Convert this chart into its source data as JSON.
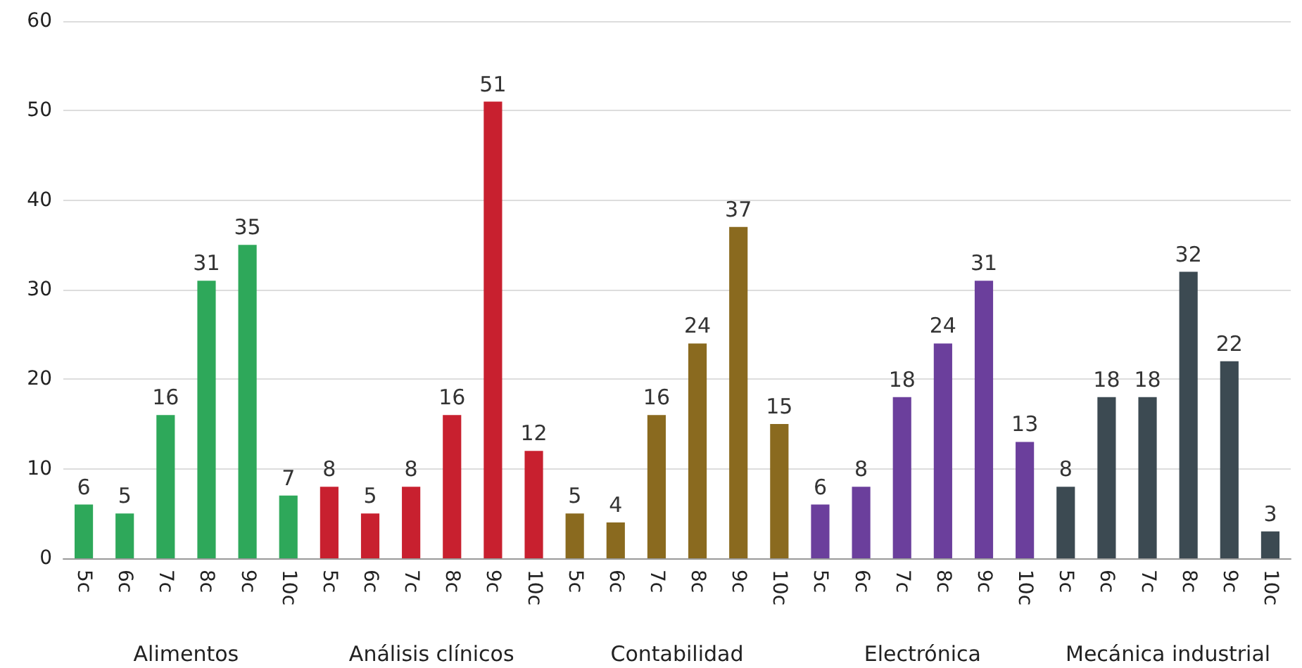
{
  "chart_data": {
    "type": "bar",
    "categories": [
      "5c",
      "6c",
      "7c",
      "8c",
      "9c",
      "10c",
      "5c",
      "6c",
      "7c",
      "8c",
      "9c",
      "10c",
      "5c",
      "6c",
      "7c",
      "8c",
      "9c",
      "10c",
      "5c",
      "6c",
      "7c",
      "8c",
      "9c",
      "10c",
      "5c",
      "6c",
      "7c",
      "8c",
      "9c",
      "10c"
    ],
    "series": [
      {
        "color": "#2ea85a",
        "values": [
          6,
          5,
          16,
          31,
          35,
          7,
          null,
          null,
          null,
          null,
          null,
          null,
          null,
          null,
          null,
          null,
          null,
          null,
          null,
          null,
          null,
          null,
          null,
          null,
          null,
          null,
          null,
          null,
          null,
          null
        ]
      },
      {
        "color": "#c8202f",
        "values": [
          null,
          null,
          null,
          null,
          null,
          null,
          8,
          5,
          8,
          16,
          51,
          12,
          null,
          null,
          null,
          null,
          null,
          null,
          null,
          null,
          null,
          null,
          null,
          null,
          null,
          null,
          null,
          null,
          null,
          null
        ]
      },
      {
        "color": "#8a6a1f",
        "values": [
          null,
          null,
          null,
          null,
          null,
          null,
          null,
          null,
          null,
          null,
          null,
          null,
          5,
          4,
          16,
          24,
          37,
          15,
          null,
          null,
          null,
          null,
          null,
          null,
          null,
          null,
          null,
          null,
          null,
          null
        ]
      },
      {
        "color": "#6b3f9c",
        "values": [
          null,
          null,
          null,
          null,
          null,
          null,
          null,
          null,
          null,
          null,
          null,
          null,
          null,
          null,
          null,
          null,
          null,
          null,
          6,
          8,
          18,
          24,
          31,
          13,
          null,
          null,
          null,
          null,
          null,
          null
        ]
      },
      {
        "color": "#3c4a52",
        "values": [
          null,
          null,
          null,
          null,
          null,
          null,
          null,
          null,
          null,
          null,
          null,
          null,
          null,
          null,
          null,
          null,
          null,
          null,
          null,
          null,
          null,
          null,
          null,
          null,
          8,
          18,
          18,
          32,
          22,
          3
        ]
      }
    ],
    "annotations": [
      "Alimentos",
      "Análisis clínicos",
      "Contabilidad",
      "Electrónica",
      "Mecánica industrial"
    ],
    "ylim": [
      0,
      60
    ],
    "yticks": [
      0,
      10,
      20,
      30,
      40,
      50,
      60
    ],
    "grid": "y",
    "data_labels": true
  }
}
